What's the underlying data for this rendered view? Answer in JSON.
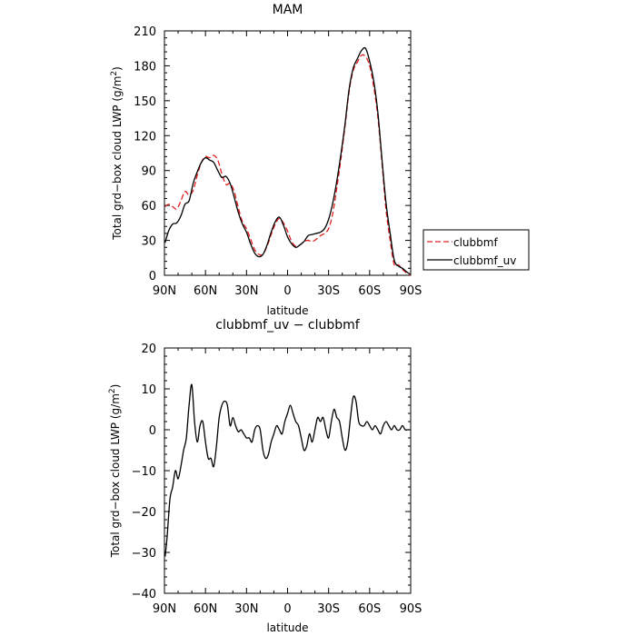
{
  "chart_data": [
    {
      "type": "line",
      "title": "MAM",
      "xlabel": "latitude",
      "ylabel": "Total grd−box cloud LWP (g/m",
      "ylabel_sup": "2",
      "ylabel_end": ")",
      "xlim": [
        90,
        -90
      ],
      "ylim": [
        0,
        210
      ],
      "x_ticks": [
        90,
        60,
        30,
        0,
        -30,
        -60,
        -90
      ],
      "x_tick_labels": [
        "90N",
        "60N",
        "30N",
        "0",
        "30S",
        "60S",
        "90S"
      ],
      "y_ticks": [
        0,
        30,
        60,
        90,
        120,
        150,
        180,
        210
      ],
      "y_tick_labels": [
        "0",
        "30",
        "60",
        "90",
        "120",
        "150",
        "180",
        "210"
      ],
      "legend_position": "right",
      "series": [
        {
          "name": "clubbmf",
          "color": "#e02020",
          "dash": "dashed",
          "x": [
            89.5,
            87,
            84,
            81,
            78,
            75,
            72,
            69,
            66,
            63,
            60,
            57,
            54,
            51,
            48,
            45,
            42,
            39,
            36,
            33,
            30,
            27,
            24,
            21,
            18,
            15,
            12,
            9,
            6,
            3,
            0,
            -3,
            -6,
            -9,
            -12,
            -15,
            -18,
            -21,
            -24,
            -27,
            -30,
            -33,
            -36,
            -39,
            -42,
            -45,
            -48,
            -51,
            -54,
            -57,
            -60,
            -63,
            -66,
            -69,
            -72,
            -75,
            -78,
            -81,
            -84,
            -87,
            -89.5
          ],
          "y": [
            59,
            61,
            59,
            57,
            64,
            72,
            69,
            73,
            86,
            97,
            102,
            101,
            103,
            99,
            87,
            78,
            79,
            72,
            58,
            46,
            40,
            31,
            22,
            18,
            18,
            25,
            35,
            44,
            49,
            45,
            38,
            29,
            25,
            26,
            29,
            30,
            29,
            31,
            34,
            36,
            40,
            53,
            75,
            100,
            128,
            158,
            176,
            183,
            189,
            188,
            180,
            162,
            136,
            97,
            56,
            30,
            9,
            9,
            5,
            2,
            0
          ]
        },
        {
          "name": "clubbmf_uv",
          "color": "#000000",
          "dash": "solid",
          "x": [
            89.5,
            87,
            84,
            81,
            78,
            75,
            72,
            69,
            66,
            63,
            60,
            57,
            54,
            51,
            48,
            45,
            42,
            39,
            36,
            33,
            30,
            27,
            24,
            21,
            18,
            15,
            12,
            9,
            6,
            3,
            0,
            -3,
            -6,
            -9,
            -12,
            -15,
            -18,
            -21,
            -24,
            -27,
            -30,
            -33,
            -36,
            -39,
            -42,
            -45,
            -48,
            -51,
            -54,
            -57,
            -60,
            -63,
            -66,
            -69,
            -72,
            -75,
            -78,
            -81,
            -84,
            -87,
            -89.5
          ],
          "y": [
            28,
            38,
            44,
            45,
            51,
            61,
            64,
            79,
            89,
            97,
            101,
            99,
            97,
            90,
            84,
            85,
            79,
            67,
            54,
            44,
            37,
            27,
            19,
            16,
            18,
            26,
            37,
            46,
            50,
            43,
            33,
            27,
            24,
            26,
            29,
            34,
            35,
            36,
            37,
            40,
            48,
            62,
            81,
            104,
            130,
            160,
            178,
            186,
            193,
            195,
            184,
            167,
            140,
            100,
            62,
            36,
            13,
            8,
            6,
            3,
            1
          ]
        }
      ]
    },
    {
      "type": "line",
      "title": "clubbmf_uv − clubbmf",
      "xlabel": "latitude",
      "ylabel": "Total grd−box cloud LWP (g/m",
      "ylabel_sup": "2",
      "ylabel_end": ")",
      "xlim": [
        90,
        -90
      ],
      "ylim": [
        -40,
        20
      ],
      "x_ticks": [
        90,
        60,
        30,
        0,
        -30,
        -60,
        -90
      ],
      "x_tick_labels": [
        "90N",
        "60N",
        "30N",
        "0",
        "30S",
        "60S",
        "90S"
      ],
      "y_ticks": [
        -40,
        -30,
        -20,
        -10,
        0,
        10,
        20
      ],
      "y_tick_labels": [
        "−40",
        "−30",
        "−20",
        "−10",
        "0",
        "10",
        "20"
      ],
      "series": [
        {
          "name": "clubbmf_uv − clubbmf",
          "color": "#000000",
          "dash": "solid",
          "x": [
            89.5,
            88,
            86,
            84,
            82,
            80,
            78,
            76,
            74,
            72,
            70,
            68,
            66,
            64,
            62,
            60,
            58,
            56,
            54,
            52,
            50,
            48,
            46,
            44,
            42,
            40,
            38,
            36,
            34,
            32,
            30,
            28,
            26,
            24,
            22,
            20,
            18,
            16,
            14,
            12,
            10,
            8,
            6,
            4,
            2,
            0,
            -2,
            -4,
            -6,
            -8,
            -10,
            -12,
            -14,
            -16,
            -18,
            -20,
            -22,
            -24,
            -26,
            -28,
            -30,
            -32,
            -34,
            -36,
            -38,
            -40,
            -42,
            -44,
            -46,
            -48,
            -50,
            -52,
            -54,
            -56,
            -58,
            -60,
            -62,
            -64,
            -66,
            -68,
            -70,
            -72,
            -74,
            -76,
            -78,
            -80,
            -82,
            -84,
            -86,
            -88,
            -89.5
          ],
          "y": [
            -31,
            -26,
            -17,
            -14,
            -10,
            -12,
            -9,
            -5,
            -2,
            6,
            11,
            2,
            -3,
            1,
            2,
            -3,
            -7,
            -7,
            -9,
            -4,
            3,
            6,
            7,
            6,
            1,
            3,
            1,
            -0.5,
            0,
            -1,
            -2,
            -2,
            -3,
            0,
            1,
            0,
            -5,
            -7,
            -6,
            -3,
            -1,
            1,
            0,
            -1,
            2,
            4,
            6,
            4,
            2,
            1,
            -2,
            -5,
            -4,
            -1,
            -3,
            0,
            3,
            2,
            3,
            0,
            -2,
            2,
            5,
            3,
            2,
            -2,
            -5,
            -3,
            3,
            8,
            7,
            2,
            1,
            1,
            2,
            1,
            0,
            1,
            0,
            -1,
            1,
            2,
            1,
            0,
            1,
            0,
            0,
            1,
            0,
            0,
            0
          ]
        }
      ]
    }
  ]
}
